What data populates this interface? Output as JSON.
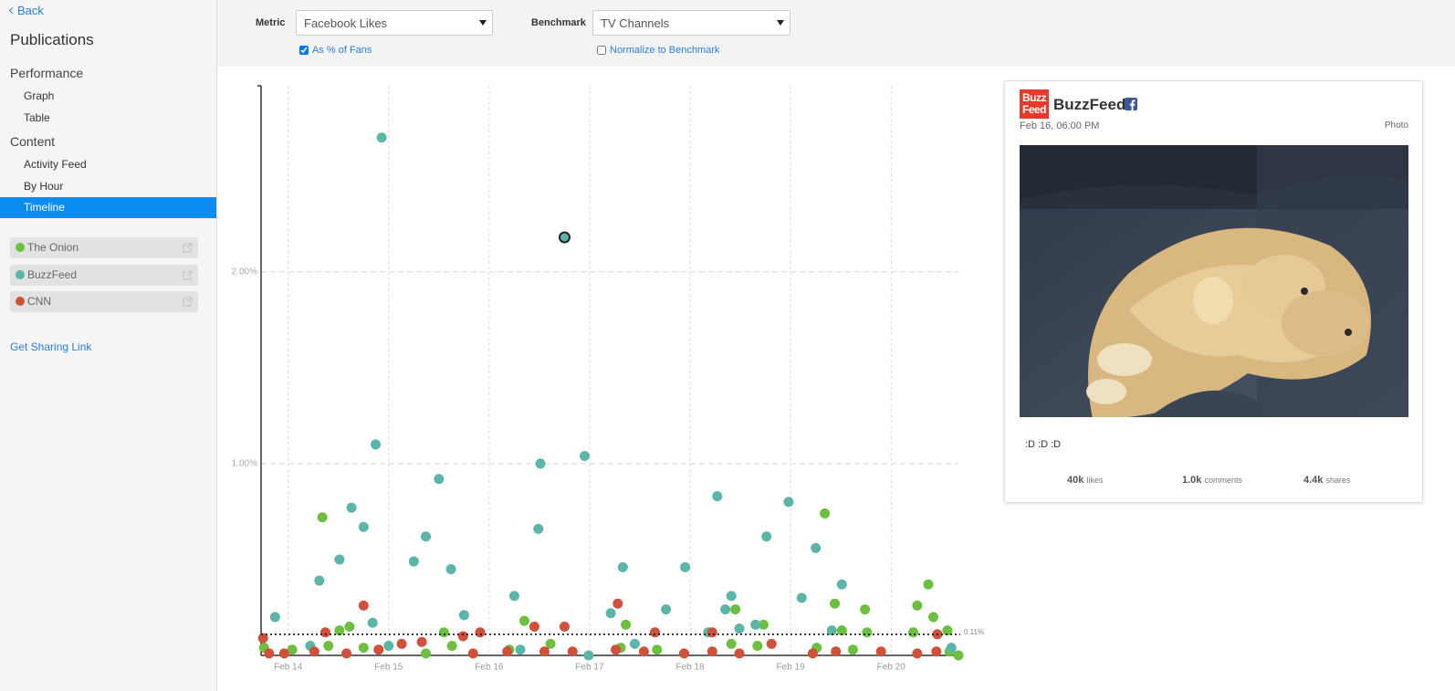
{
  "sidebar": {
    "back": "Back",
    "title": "Publications",
    "sections": [
      {
        "label": "Performance",
        "items": [
          "Graph",
          "Table"
        ]
      },
      {
        "label": "Content",
        "items": [
          "Activity Feed",
          "By Hour",
          "Timeline"
        ]
      }
    ],
    "active_item": "Timeline",
    "sharing_link": "Get Sharing Link"
  },
  "controls": {
    "metric_label": "Metric",
    "metric_value": "Facebook Likes",
    "metric_option": "As % of Fans",
    "metric_option_checked": true,
    "benchmark_label": "Benchmark",
    "benchmark_value": "TV Channels",
    "benchmark_option": "Normalize to Benchmark",
    "benchmark_option_checked": false
  },
  "chart_data": {
    "type": "scatter",
    "xlim": [
      13.73,
      20.67
    ],
    "xticks": [
      {
        "value": 14,
        "label": "Feb 14"
      },
      {
        "value": 15,
        "label": "Feb 15"
      },
      {
        "value": 16,
        "label": "Feb 16"
      },
      {
        "value": 17,
        "label": "Feb 17"
      },
      {
        "value": 18,
        "label": "Feb 18"
      },
      {
        "value": 19,
        "label": "Feb 19"
      },
      {
        "value": 20,
        "label": "Feb 20"
      }
    ],
    "ylim": [
      0,
      2.97
    ],
    "yticks": [
      {
        "value": 1,
        "label": "1.00%"
      },
      {
        "value": 2,
        "label": "2.00%"
      }
    ],
    "grid": true,
    "benchmark": {
      "value": 0.11,
      "label": "0.11%"
    },
    "series": [
      {
        "name": "The Onion",
        "color": "#6cbf3f",
        "x": [
          14.34,
          19.34,
          20.37,
          20.26,
          20.42,
          19.44,
          19.74,
          18.45,
          18.73,
          17.36,
          16.35,
          14.61,
          14.51,
          15.55,
          19.51,
          19.76,
          20.56,
          13.76,
          14.04,
          14.4,
          14.75,
          15.37,
          15.63,
          16.2,
          16.61,
          17.31,
          17.67,
          18.41,
          18.67,
          19.26,
          19.62,
          20.22,
          20.58,
          20.67
        ],
        "values": [
          0.72,
          0.74,
          0.37,
          0.26,
          0.2,
          0.27,
          0.24,
          0.24,
          0.16,
          0.16,
          0.18,
          0.15,
          0.13,
          0.12,
          0.13,
          0.12,
          0.13,
          0.04,
          0.03,
          0.05,
          0.04,
          0.01,
          0.05,
          0.03,
          0.06,
          0.04,
          0.03,
          0.06,
          0.05,
          0.04,
          0.03,
          0.12,
          0.02,
          0
        ]
      },
      {
        "name": "BuzzFeed",
        "color": "#5bb5a9",
        "selected": 16,
        "x": [
          13.87,
          14.93,
          14.87,
          14.31,
          14.51,
          14.63,
          14.75,
          14.84,
          15.25,
          15.37,
          15.5,
          15.62,
          15.75,
          16.25,
          16.49,
          16.51,
          16.75,
          16.95,
          17.33,
          17.21,
          17.76,
          17.95,
          18.27,
          18.41,
          18.35,
          18.49,
          18.65,
          18.76,
          18.98,
          19.11,
          19.25,
          19.51,
          19.41,
          18.18,
          16.99,
          15.0,
          14.22,
          20.6,
          16.31,
          17.45
        ],
        "values": [
          0.2,
          2.7,
          1.1,
          0.39,
          0.5,
          0.77,
          0.67,
          0.17,
          0.49,
          0.62,
          0.92,
          0.45,
          0.21,
          0.31,
          0.66,
          1.0,
          2.18,
          1.04,
          0.46,
          0.22,
          0.24,
          0.46,
          0.83,
          0.31,
          0.24,
          0.14,
          0.16,
          0.62,
          0.8,
          0.3,
          0.56,
          0.37,
          0.13,
          0.12,
          0,
          0.05,
          0.05,
          0.04,
          0.03,
          0.06
        ]
      },
      {
        "name": "CNN",
        "color": "#d0503a",
        "x": [
          14.75,
          17.28,
          16.75,
          16.45,
          14.37,
          15.91,
          15.74,
          17.65,
          18.22,
          20.46,
          13.75,
          13.81,
          13.96,
          14.26,
          14.58,
          14.9,
          15.13,
          15.33,
          15.84,
          16.18,
          16.55,
          16.83,
          17.26,
          17.54,
          17.94,
          18.22,
          18.49,
          18.81,
          19.22,
          19.45,
          19.9,
          20.26,
          20.45
        ],
        "values": [
          0.26,
          0.27,
          0.15,
          0.15,
          0.12,
          0.12,
          0.1,
          0.12,
          0.12,
          0.11,
          0.09,
          0.01,
          0.01,
          0.02,
          0.01,
          0.03,
          0.06,
          0.07,
          0.01,
          0.02,
          0.02,
          0.02,
          0.03,
          0.02,
          0.01,
          0.02,
          0.01,
          0.06,
          0.01,
          0.02,
          0.02,
          0.01,
          0.02
        ]
      }
    ]
  },
  "post": {
    "logo": [
      "Buzz",
      "Feed"
    ],
    "publication": "BuzzFeed",
    "date": "Feb 16, 06:00 PM",
    "kind": "Photo",
    "caption": ":D :D :D",
    "stats": [
      {
        "value": "40k",
        "unit": "likes"
      },
      {
        "value": "1.0k",
        "unit": "comments"
      },
      {
        "value": "4.4k",
        "unit": "shares"
      }
    ]
  }
}
